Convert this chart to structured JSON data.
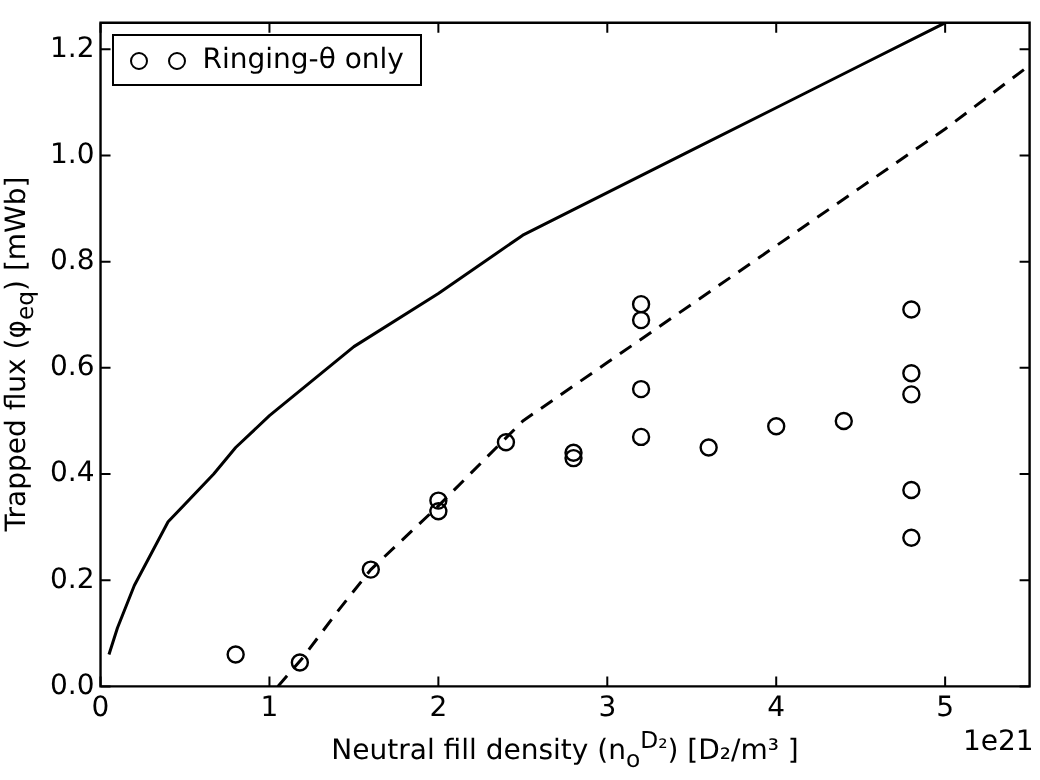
{
  "chart_data": {
    "type": "scatter",
    "xlabel": "Neutral fill density (n$_{o}$$^{D₂}$) [D₂/m³ ]",
    "ylabel": "Trapped flux (φ$_{eq}$) [mWb]",
    "xlim": [
      0,
      5.5
    ],
    "ylim": [
      0,
      1.25
    ],
    "xticks": [
      0,
      1,
      2,
      3,
      4,
      5
    ],
    "yticks": [
      {
        "value": 0,
        "label": "0.0"
      },
      {
        "value": 0.2,
        "label": "0.2"
      },
      {
        "value": 0.4,
        "label": "0.4"
      },
      {
        "value": 0.6,
        "label": "0.6"
      },
      {
        "value": 0.8,
        "label": "0.8"
      },
      {
        "value": 1,
        "label": "1.0"
      },
      {
        "value": 1.2,
        "label": "1.2"
      }
    ],
    "grid": false,
    "legend": "top left",
    "annotations": [
      "1e21"
    ],
    "series": [
      {
        "name": "Ringing-θ only",
        "type": "scatter",
        "marker": "circle",
        "color": "#000000",
        "x": [
          0.8,
          1.18,
          1.6,
          2.0,
          2.0,
          2.4,
          2.8,
          2.8,
          3.2,
          3.2,
          3.2,
          3.2,
          3.6,
          4.0,
          4.4,
          4.8,
          4.8,
          4.8,
          4.8,
          4.8
        ],
        "values": [
          0.06,
          0.045,
          0.22,
          0.35,
          0.33,
          0.46,
          0.44,
          0.43,
          0.72,
          0.69,
          0.56,
          0.47,
          0.45,
          0.49,
          0.5,
          0.71,
          0.59,
          0.55,
          0.37,
          0.28
        ]
      },
      {
        "type": "line",
        "marker": "none",
        "line_style": "solid",
        "color": "#000000",
        "x": [
          0.05,
          0.1,
          0.2,
          0.4,
          0.67,
          0.8,
          1.0,
          1.5,
          2.0,
          2.5,
          3.0,
          3.5,
          4.0,
          4.5,
          5.0
        ],
        "values": [
          0.06,
          0.11,
          0.19,
          0.31,
          0.4,
          0.45,
          0.51,
          0.64,
          0.74,
          0.85,
          0.93,
          1.01,
          1.09,
          1.17,
          1.25
        ]
      },
      {
        "type": "line",
        "marker": "none",
        "line_style": "dashed",
        "color": "#000000",
        "x": [
          1.05,
          1.2,
          1.4,
          1.6,
          2.0,
          2.5,
          3.0,
          3.5,
          4.0,
          4.5,
          5.0,
          5.5
        ],
        "values": [
          0,
          0.055,
          0.14,
          0.22,
          0.34,
          0.5,
          0.61,
          0.72,
          0.83,
          0.94,
          1.05,
          1.17
        ]
      }
    ]
  }
}
